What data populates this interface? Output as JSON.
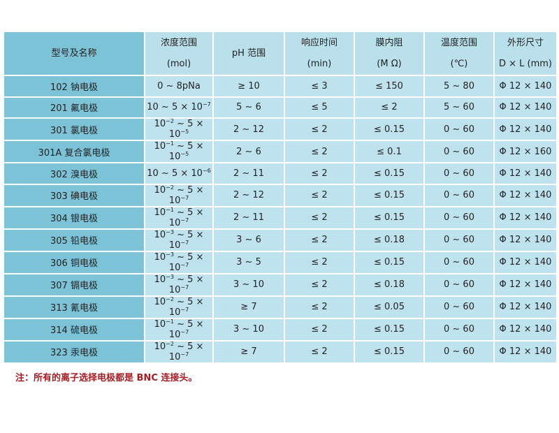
{
  "colors": {
    "name_column": "#7cc3d8",
    "cell": "#bfe3ee",
    "header": "#b9e0eb",
    "note": "#a61c22"
  },
  "headers": [
    {
      "line1": "型号及名称",
      "line2": ""
    },
    {
      "line1": "浓度范围",
      "line2": "(mol)"
    },
    {
      "line1": "pH 范围",
      "line2": ""
    },
    {
      "line1": "响应时间",
      "line2": "(min)"
    },
    {
      "line1": "膜内阻",
      "line2": "(M Ω)"
    },
    {
      "line1": "温度范围",
      "line2": "(℃)"
    },
    {
      "line1": "外形尺寸",
      "line2": "D × L (mm)"
    }
  ],
  "rows": [
    {
      "name": "102  钠电极",
      "conc": {
        "lo": "0 ~ 8pNa",
        "lo_exp": "",
        "hi": "",
        "hi_exp": ""
      },
      "ph": "≥ 10",
      "resp": "≤ 3",
      "res": "≤ 150",
      "temp": "5 ~ 80",
      "size": "Φ 12 × 140"
    },
    {
      "name": "201  氟电极",
      "conc": {
        "lo": "10",
        "lo_exp": "",
        "hi": " ~ 5 × 10",
        "hi_exp": "−7"
      },
      "ph": "5 ~ 6",
      "resp": "≤ 5",
      "res": "≤ 2",
      "temp": "5 ~ 60",
      "size": "Φ 12 × 140"
    },
    {
      "name": "301  氯电极",
      "conc": {
        "lo": "10",
        "lo_exp": "−2",
        "hi": " ~ 5 × 10",
        "hi_exp": "−5"
      },
      "ph": "2 ~ 12",
      "resp": "≤ 2",
      "res": "≤ 0.15",
      "temp": "0 ~ 60",
      "size": "Φ 12 × 140"
    },
    {
      "name": "301A  复合氯电极",
      "conc": {
        "lo": "10",
        "lo_exp": "−1",
        "hi": " ~ 5 × 10",
        "hi_exp": "−5"
      },
      "ph": "2 ~ 6",
      "resp": "≤ 2",
      "res": "≤ 0.1",
      "temp": "0 ~ 60",
      "size": "Φ 12 × 160"
    },
    {
      "name": "302  溴电极",
      "conc": {
        "lo": "10",
        "lo_exp": "",
        "hi": " ~ 5 × 10",
        "hi_exp": "−6"
      },
      "ph": "2 ~ 11",
      "resp": "≤ 2",
      "res": "≤ 0.15",
      "temp": "0 ~ 60",
      "size": "Φ 12 × 140"
    },
    {
      "name": "303  碘电极",
      "conc": {
        "lo": "10",
        "lo_exp": "−2",
        "hi": " ~ 5 × 10",
        "hi_exp": "−7"
      },
      "ph": "2 ~ 12",
      "resp": "≤ 2",
      "res": "≤ 0.15",
      "temp": "0 ~ 60",
      "size": "Φ 12 × 140"
    },
    {
      "name": "304  银电极",
      "conc": {
        "lo": "10",
        "lo_exp": "−1",
        "hi": " ~ 5 × 10",
        "hi_exp": "−7"
      },
      "ph": "2 ~ 11",
      "resp": "≤ 2",
      "res": "≤ 0.15",
      "temp": "0 ~ 60",
      "size": "Φ 12 × 140"
    },
    {
      "name": "305  铅电极",
      "conc": {
        "lo": "10",
        "lo_exp": "−3",
        "hi": " ~ 5 × 10",
        "hi_exp": "−7"
      },
      "ph": "3 ~ 6",
      "resp": "≤ 2",
      "res": "≤ 0.18",
      "temp": "0 ~ 60",
      "size": "Φ 12 × 140"
    },
    {
      "name": "306  铜电极",
      "conc": {
        "lo": "10",
        "lo_exp": "−3",
        "hi": " ~ 5 × 10",
        "hi_exp": "−7"
      },
      "ph": "3 ~ 5",
      "resp": "≤ 2",
      "res": "≤ 0.15",
      "temp": "0 ~ 60",
      "size": "Φ 12 × 140"
    },
    {
      "name": "307  镉电极",
      "conc": {
        "lo": "10",
        "lo_exp": "−3",
        "hi": " ~ 5 × 10",
        "hi_exp": "−7"
      },
      "ph": "3 ~ 10",
      "resp": "≤ 2",
      "res": "≤ 0.18",
      "temp": "0 ~ 60",
      "size": "Φ 12 × 140"
    },
    {
      "name": "313  氰电极",
      "conc": {
        "lo": "10",
        "lo_exp": "−2",
        "hi": " ~ 5 × 10",
        "hi_exp": "−7"
      },
      "ph": "≥ 7",
      "resp": "≤ 2",
      "res": "≤ 0.05",
      "temp": "0 ~ 60",
      "size": "Φ 12 × 140"
    },
    {
      "name": "314  硫电极",
      "conc": {
        "lo": "10",
        "lo_exp": "−1",
        "hi": " ~ 5 × 10",
        "hi_exp": "−7"
      },
      "ph": "3 ~ 10",
      "resp": "≤ 2",
      "res": "≤ 0.15",
      "temp": "0 ~ 60",
      "size": "Φ 12 × 140"
    },
    {
      "name": "323  汞电极",
      "conc": {
        "lo": "10",
        "lo_exp": "−2",
        "hi": " ~ 5 × 10",
        "hi_exp": "−7"
      },
      "ph": "≥ 7",
      "resp": "≤ 2",
      "res": "≤ 0.15",
      "temp": "0 ~ 60",
      "size": "Φ 12 × 140"
    }
  ],
  "note": "注：所有的离子选择电极都是 BNC 连接头。"
}
